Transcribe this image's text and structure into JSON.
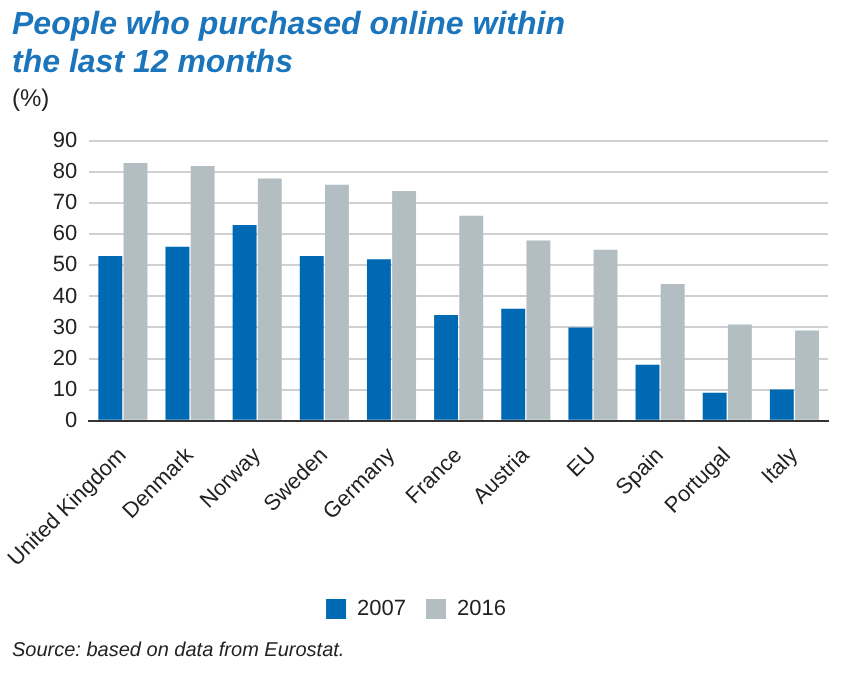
{
  "chart_data": {
    "type": "bar",
    "title": "People who purchased online within the last 12 months",
    "ylabel": "(%)",
    "categories": [
      "United Kingdom",
      "Denmark",
      "Norway",
      "Sweden",
      "Germany",
      "France",
      "Austria",
      "EU",
      "Spain",
      "Portugal",
      "Italy"
    ],
    "series": [
      {
        "name": "2007",
        "color": "#0069b4",
        "values": [
          53,
          56,
          63,
          53,
          52,
          34,
          36,
          30,
          18,
          9,
          10
        ]
      },
      {
        "name": "2016",
        "color": "#b3bec3",
        "values": [
          83,
          82,
          78,
          76,
          74,
          66,
          58,
          55,
          44,
          31,
          29
        ]
      }
    ],
    "ylim": [
      0,
      90
    ],
    "yticks": [
      0,
      10,
      20,
      30,
      40,
      50,
      60,
      70,
      80,
      90
    ],
    "grid": "y",
    "legend": "bottom",
    "annotations": [
      "Source: based on data from Eurostat."
    ]
  }
}
